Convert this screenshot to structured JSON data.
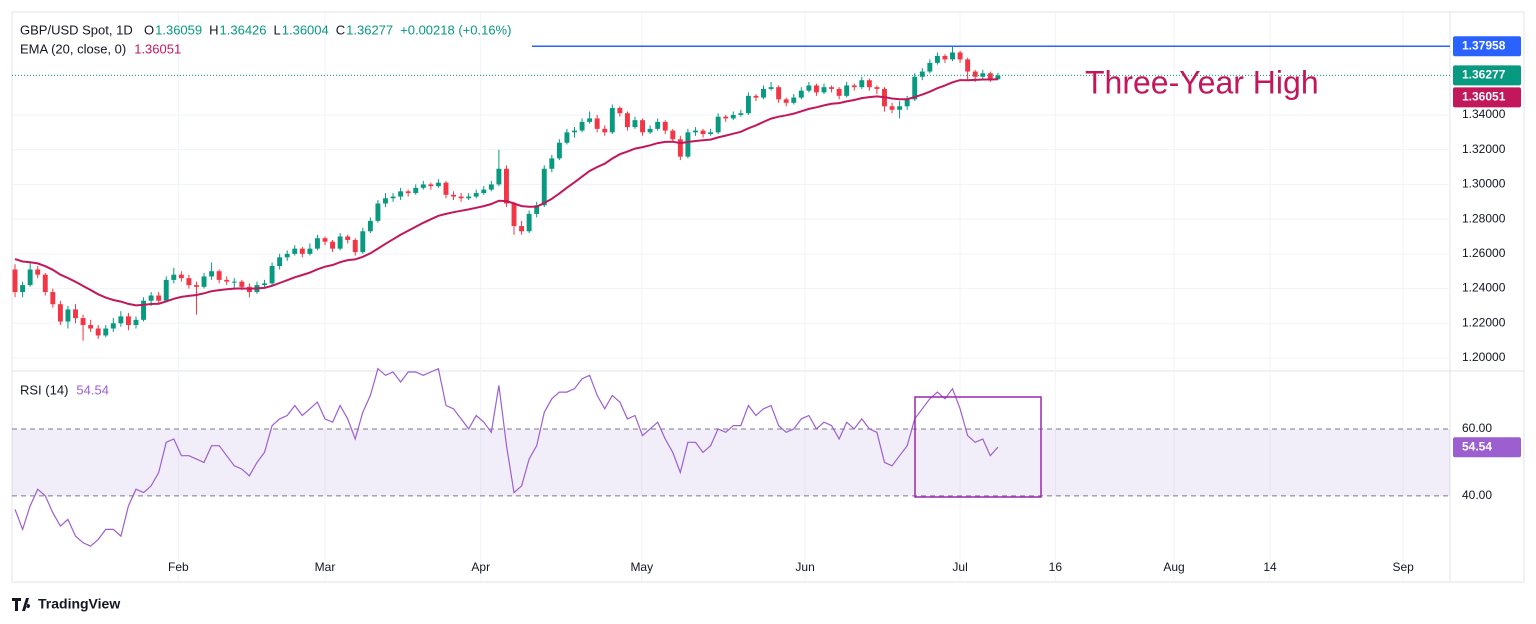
{
  "chart_data": {
    "type": "candlestick",
    "header": {
      "symbol": "GBP/USD Spot, 1D",
      "ohlc_labels": [
        "O",
        "H",
        "L",
        "C"
      ],
      "change": "+0.00218 (+0.16%)"
    },
    "ema": {
      "name": "EMA (20, close, 0)",
      "color": "#c2185b",
      "values": [
        1.257,
        1.2556,
        1.2552,
        1.2545,
        1.2529,
        1.2508,
        1.248,
        1.2461,
        1.2439,
        1.2415,
        1.2392,
        1.2367,
        1.2348,
        1.2334,
        1.2325,
        1.2312,
        1.2303,
        1.2306,
        1.2311,
        1.2313,
        1.2326,
        1.2341,
        1.2352,
        1.2358,
        1.2363,
        1.2373,
        1.2385,
        1.2391,
        1.2396,
        1.24,
        1.2401,
        1.2399,
        1.2401,
        1.2404,
        1.2416,
        1.2432,
        1.2448,
        1.2465,
        1.2478,
        1.2492,
        1.2511,
        1.2526,
        1.2536,
        1.2552,
        1.2564,
        1.2568,
        1.2583,
        1.2603,
        1.263,
        1.2658,
        1.2684,
        1.271,
        1.2733,
        1.2756,
        1.2779,
        1.2799,
        1.2819,
        1.283,
        1.284,
        1.2848,
        1.2856,
        1.2865,
        1.2875,
        1.2887,
        1.2906,
        1.2904,
        1.289,
        1.2875,
        1.2871,
        1.2872,
        1.2893,
        1.2917,
        1.2948,
        1.2981,
        1.3012,
        1.3045,
        1.3077,
        1.31,
        1.3119,
        1.3149,
        1.3174,
        1.3189,
        1.3206,
        1.3215,
        1.3225,
        1.3238,
        1.3245,
        1.3246,
        1.3238,
        1.3244,
        1.325,
        1.3254,
        1.3258,
        1.3271,
        1.3281,
        1.3292,
        1.3303,
        1.3323,
        1.334,
        1.336,
        1.3379,
        1.339,
        1.3398,
        1.3408,
        1.3421,
        1.3435,
        1.3444,
        1.3455,
        1.3464,
        1.3468,
        1.3478,
        1.3486,
        1.3497,
        1.3503,
        1.3507,
        1.3502,
        1.3495,
        1.3491,
        1.3491,
        1.3503,
        1.3517,
        1.3534,
        1.3554,
        1.357,
        1.3588,
        1.3601,
        1.36,
        1.3602,
        1.3604,
        1.3604,
        1.36051
      ]
    },
    "up_color": "#089981",
    "down_color": "#f23645",
    "candles": [
      [
        1.251,
        1.254,
        1.235,
        1.238
      ],
      [
        1.238,
        1.244,
        1.235,
        1.242
      ],
      [
        1.242,
        1.255,
        1.241,
        1.251
      ],
      [
        1.251,
        1.253,
        1.246,
        1.248
      ],
      [
        1.248,
        1.249,
        1.236,
        1.238
      ],
      [
        1.238,
        1.24,
        1.229,
        1.231
      ],
      [
        1.231,
        1.233,
        1.219,
        1.221
      ],
      [
        1.221,
        1.23,
        1.217,
        1.228
      ],
      [
        1.228,
        1.231,
        1.22,
        1.223
      ],
      [
        1.223,
        1.225,
        1.21,
        1.219
      ],
      [
        1.219,
        1.222,
        1.215,
        1.217
      ],
      [
        1.217,
        1.219,
        1.211,
        1.213
      ],
      [
        1.213,
        1.219,
        1.212,
        1.217
      ],
      [
        1.217,
        1.223,
        1.215,
        1.22
      ],
      [
        1.22,
        1.227,
        1.218,
        1.224
      ],
      [
        1.224,
        1.226,
        1.216,
        1.219
      ],
      [
        1.219,
        1.224,
        1.217,
        1.222
      ],
      [
        1.222,
        1.235,
        1.221,
        1.233
      ],
      [
        1.233,
        1.238,
        1.23,
        1.236
      ],
      [
        1.236,
        1.238,
        1.231,
        1.233
      ],
      [
        1.233,
        1.247,
        1.232,
        1.245
      ],
      [
        1.245,
        1.252,
        1.243,
        1.248
      ],
      [
        1.248,
        1.25,
        1.244,
        1.246
      ],
      [
        1.246,
        1.248,
        1.24,
        1.242
      ],
      [
        1.242,
        1.244,
        1.225,
        1.241
      ],
      [
        1.241,
        1.249,
        1.24,
        1.247
      ],
      [
        1.247,
        1.255,
        1.245,
        1.25
      ],
      [
        1.25,
        1.251,
        1.243,
        1.245
      ],
      [
        1.245,
        1.247,
        1.242,
        1.244
      ],
      [
        1.244,
        1.246,
        1.24,
        1.244
      ],
      [
        1.244,
        1.245,
        1.239,
        1.241
      ],
      [
        1.241,
        1.243,
        1.235,
        1.238
      ],
      [
        1.238,
        1.244,
        1.237,
        1.242
      ],
      [
        1.242,
        1.245,
        1.24,
        1.243
      ],
      [
        1.243,
        1.255,
        1.242,
        1.253
      ],
      [
        1.253,
        1.26,
        1.251,
        1.258
      ],
      [
        1.258,
        1.262,
        1.256,
        1.26
      ],
      [
        1.26,
        1.265,
        1.259,
        1.263
      ],
      [
        1.263,
        1.264,
        1.258,
        1.26
      ],
      [
        1.26,
        1.266,
        1.259,
        1.263
      ],
      [
        1.263,
        1.271,
        1.262,
        1.269
      ],
      [
        1.269,
        1.27,
        1.265,
        1.267
      ],
      [
        1.267,
        1.268,
        1.261,
        1.263
      ],
      [
        1.263,
        1.272,
        1.262,
        1.27
      ],
      [
        1.27,
        1.271,
        1.266,
        1.268
      ],
      [
        1.268,
        1.269,
        1.259,
        1.261
      ],
      [
        1.261,
        1.275,
        1.26,
        1.273
      ],
      [
        1.273,
        1.281,
        1.272,
        1.279
      ],
      [
        1.279,
        1.291,
        1.278,
        1.289
      ],
      [
        1.289,
        1.295,
        1.287,
        1.292
      ],
      [
        1.292,
        1.295,
        1.29,
        1.293
      ],
      [
        1.293,
        1.298,
        1.291,
        1.296
      ],
      [
        1.296,
        1.297,
        1.293,
        1.295
      ],
      [
        1.295,
        1.3,
        1.294,
        1.298
      ],
      [
        1.298,
        1.302,
        1.297,
        1.3
      ],
      [
        1.3,
        1.301,
        1.297,
        1.299
      ],
      [
        1.299,
        1.303,
        1.298,
        1.301
      ],
      [
        1.301,
        1.302,
        1.292,
        1.294
      ],
      [
        1.294,
        1.296,
        1.291,
        1.293
      ],
      [
        1.293,
        1.295,
        1.29,
        1.292
      ],
      [
        1.292,
        1.295,
        1.291,
        1.293
      ],
      [
        1.293,
        1.297,
        1.292,
        1.295
      ],
      [
        1.295,
        1.299,
        1.294,
        1.297
      ],
      [
        1.297,
        1.302,
        1.296,
        1.3
      ],
      [
        1.3,
        1.32,
        1.299,
        1.309
      ],
      [
        1.309,
        1.311,
        1.287,
        1.289
      ],
      [
        1.289,
        1.29,
        1.271,
        1.276
      ],
      [
        1.276,
        1.279,
        1.271,
        1.273
      ],
      [
        1.273,
        1.285,
        1.272,
        1.283
      ],
      [
        1.283,
        1.29,
        1.281,
        1.288
      ],
      [
        1.288,
        1.311,
        1.287,
        1.309
      ],
      [
        1.309,
        1.317,
        1.307,
        1.315
      ],
      [
        1.315,
        1.326,
        1.314,
        1.324
      ],
      [
        1.324,
        1.332,
        1.323,
        1.33
      ],
      [
        1.33,
        1.333,
        1.327,
        1.331
      ],
      [
        1.331,
        1.338,
        1.33,
        1.336
      ],
      [
        1.336,
        1.342,
        1.335,
        1.338
      ],
      [
        1.338,
        1.34,
        1.33,
        1.332
      ],
      [
        1.332,
        1.334,
        1.328,
        1.33
      ],
      [
        1.33,
        1.346,
        1.329,
        1.344
      ],
      [
        1.344,
        1.345,
        1.339,
        1.341
      ],
      [
        1.341,
        1.342,
        1.331,
        1.333
      ],
      [
        1.333,
        1.339,
        1.332,
        1.337
      ],
      [
        1.337,
        1.338,
        1.328,
        1.33
      ],
      [
        1.33,
        1.334,
        1.329,
        1.332
      ],
      [
        1.332,
        1.338,
        1.331,
        1.336
      ],
      [
        1.336,
        1.337,
        1.329,
        1.331
      ],
      [
        1.331,
        1.332,
        1.324,
        1.326
      ],
      [
        1.326,
        1.328,
        1.314,
        1.316
      ],
      [
        1.316,
        1.332,
        1.315,
        1.33
      ],
      [
        1.33,
        1.333,
        1.328,
        1.331
      ],
      [
        1.331,
        1.332,
        1.327,
        1.329
      ],
      [
        1.329,
        1.332,
        1.328,
        1.33
      ],
      [
        1.33,
        1.341,
        1.329,
        1.339
      ],
      [
        1.339,
        1.34,
        1.336,
        1.338
      ],
      [
        1.338,
        1.342,
        1.337,
        1.34
      ],
      [
        1.34,
        1.343,
        1.339,
        1.341
      ],
      [
        1.341,
        1.353,
        1.34,
        1.351
      ],
      [
        1.351,
        1.352,
        1.348,
        1.35
      ],
      [
        1.35,
        1.357,
        1.349,
        1.355
      ],
      [
        1.355,
        1.359,
        1.354,
        1.356
      ],
      [
        1.356,
        1.357,
        1.347,
        1.349
      ],
      [
        1.349,
        1.35,
        1.345,
        1.347
      ],
      [
        1.347,
        1.352,
        1.346,
        1.35
      ],
      [
        1.35,
        1.356,
        1.349,
        1.354
      ],
      [
        1.354,
        1.359,
        1.353,
        1.357
      ],
      [
        1.357,
        1.358,
        1.351,
        1.353
      ],
      [
        1.353,
        1.358,
        1.352,
        1.356
      ],
      [
        1.356,
        1.357,
        1.353,
        1.355
      ],
      [
        1.355,
        1.356,
        1.349,
        1.351
      ],
      [
        1.351,
        1.359,
        1.35,
        1.357
      ],
      [
        1.357,
        1.358,
        1.354,
        1.356
      ],
      [
        1.356,
        1.362,
        1.355,
        1.36
      ],
      [
        1.36,
        1.361,
        1.354,
        1.356
      ],
      [
        1.356,
        1.357,
        1.352,
        1.355
      ],
      [
        1.355,
        1.356,
        1.342,
        1.345
      ],
      [
        1.345,
        1.347,
        1.341,
        1.343
      ],
      [
        1.343,
        1.348,
        1.338,
        1.345
      ],
      [
        1.345,
        1.351,
        1.343,
        1.349
      ],
      [
        1.349,
        1.364,
        1.348,
        1.362
      ],
      [
        1.362,
        1.367,
        1.36,
        1.365
      ],
      [
        1.365,
        1.372,
        1.364,
        1.37
      ],
      [
        1.37,
        1.376,
        1.369,
        1.374
      ],
      [
        1.374,
        1.375,
        1.37,
        1.372
      ],
      [
        1.372,
        1.37958,
        1.371,
        1.376
      ],
      [
        1.376,
        1.377,
        1.37,
        1.372
      ],
      [
        1.372,
        1.373,
        1.36,
        1.365
      ],
      [
        1.365,
        1.366,
        1.359,
        1.362
      ],
      [
        1.362,
        1.366,
        1.361,
        1.364
      ],
      [
        1.364,
        1.365,
        1.359,
        1.3606
      ],
      [
        1.36059,
        1.36426,
        1.36004,
        1.36277
      ]
    ],
    "resistance": {
      "value": 1.37958,
      "color": "#2962ff"
    },
    "annotation": "Three-Year High",
    "xlim": [
      -0.4,
      189.8
    ],
    "xticks": [
      {
        "value": 21.6,
        "label": "Feb"
      },
      {
        "value": 41.0,
        "label": "Mar"
      },
      {
        "value": 61.6,
        "label": "Apr"
      },
      {
        "value": 82.9,
        "label": "May"
      },
      {
        "value": 104.5,
        "label": "Jun"
      },
      {
        "value": 125.0,
        "label": "Jul"
      },
      {
        "value": 137.6,
        "label": "16"
      },
      {
        "value": 153.3,
        "label": "Aug"
      },
      {
        "value": 166.0,
        "label": "14"
      },
      {
        "value": 183.6,
        "label": "Sep"
      }
    ],
    "ylim": [
      1.1931,
      1.3993
    ],
    "yticks": [
      {
        "value": 1.2,
        "label": "1.20000"
      },
      {
        "value": 1.22,
        "label": "1.22000"
      },
      {
        "value": 1.24,
        "label": "1.24000"
      },
      {
        "value": 1.26,
        "label": "1.26000"
      },
      {
        "value": 1.28,
        "label": "1.28000"
      },
      {
        "value": 1.3,
        "label": "1.30000"
      },
      {
        "value": 1.32,
        "label": "1.32000"
      },
      {
        "value": 1.34,
        "label": "1.34000"
      }
    ],
    "grid": true,
    "rsi": {
      "name": "RSI (14)",
      "color": "#9c5fd0",
      "ylim": [
        14.3,
        77.0
      ],
      "levels": [
        {
          "value": 60,
          "label": "60.00"
        },
        {
          "value": 40,
          "label": "40.00"
        }
      ],
      "values": [
        36,
        30,
        37,
        42,
        40,
        35,
        31,
        33,
        28,
        26,
        25,
        27,
        30,
        30,
        28,
        37,
        42,
        41,
        43,
        47,
        56,
        57,
        52,
        52,
        51,
        50,
        55,
        55,
        52,
        49,
        48,
        46,
        50,
        53,
        61,
        63,
        64,
        67,
        64,
        66,
        68,
        63,
        62,
        67,
        63,
        57,
        65,
        70,
        78,
        76,
        77,
        74,
        77,
        77,
        76,
        77,
        78,
        67,
        66,
        63,
        60,
        64,
        62,
        59,
        73,
        55,
        41,
        43,
        51,
        55,
        65,
        69,
        71,
        71,
        72,
        75,
        76,
        70,
        66,
        70,
        68,
        63,
        64,
        58,
        60,
        62,
        57,
        53,
        47,
        56,
        56,
        53,
        55,
        60,
        59,
        61,
        61,
        67,
        64,
        66,
        67,
        61,
        59,
        60,
        63,
        64,
        60,
        62,
        61,
        57,
        62,
        60,
        63,
        60,
        59,
        50,
        49,
        52,
        55,
        63,
        66,
        69,
        71,
        69,
        72,
        66,
        58,
        56,
        57,
        52,
        54.54
      ]
    },
    "brand": "TradingView"
  }
}
